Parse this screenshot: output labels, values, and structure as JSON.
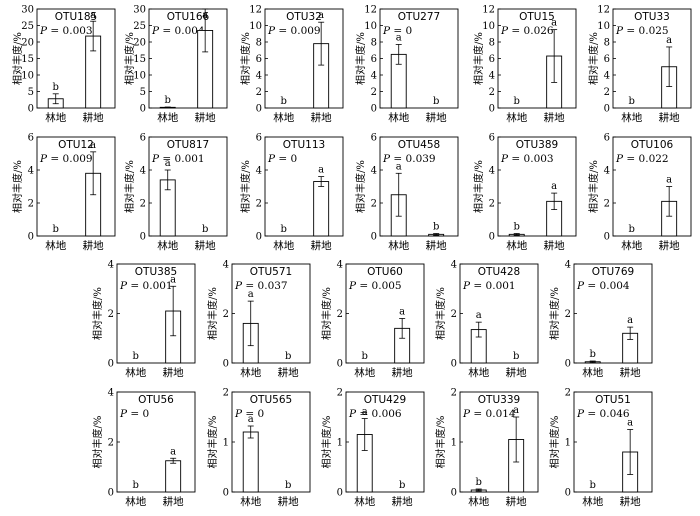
{
  "chart_data": [
    {
      "type": "bar",
      "title": "OTU185",
      "p": "= 0.003",
      "ylabel": "相对丰度/%",
      "ylim": [
        0,
        30
      ],
      "yticks": [
        0,
        5,
        10,
        15,
        20,
        25,
        30
      ],
      "categories": [
        "林地",
        "耕地"
      ],
      "values": [
        2.8,
        21.8
      ],
      "errors": [
        1.5,
        4.5
      ],
      "letters": [
        "b",
        "a"
      ]
    },
    {
      "type": "bar",
      "title": "OTU166",
      "p": "= 0.004",
      "ylabel": "相对丰度/%",
      "ylim": [
        0,
        30
      ],
      "yticks": [
        0,
        5,
        10,
        15,
        20,
        25,
        30
      ],
      "categories": [
        "林地",
        "耕地"
      ],
      "values": [
        0.2,
        23.5
      ],
      "errors": [
        0.1,
        6.5
      ],
      "letters": [
        "b",
        "a"
      ]
    },
    {
      "type": "bar",
      "title": "OTU32",
      "p": "= 0.009",
      "ylabel": "相对丰度/%",
      "ylim": [
        0,
        12
      ],
      "yticks": [
        0,
        2,
        4,
        6,
        8,
        10,
        12
      ],
      "categories": [
        "林地",
        "耕地"
      ],
      "values": [
        0,
        7.8
      ],
      "errors": [
        0,
        2.6
      ],
      "letters": [
        "b",
        "a"
      ]
    },
    {
      "type": "bar",
      "title": "OTU277",
      "p": "= 0",
      "ylabel": "相对丰度/%",
      "ylim": [
        0,
        12
      ],
      "yticks": [
        0,
        2,
        4,
        6,
        8,
        10,
        12
      ],
      "categories": [
        "林地",
        "耕地"
      ],
      "values": [
        6.5,
        0
      ],
      "errors": [
        1.2,
        0
      ],
      "letters": [
        "a",
        "b"
      ]
    },
    {
      "type": "bar",
      "title": "OTU15",
      "p": "= 0.026",
      "ylabel": "相对丰度/%",
      "ylim": [
        0,
        12
      ],
      "yticks": [
        0,
        2,
        4,
        6,
        8,
        10,
        12
      ],
      "categories": [
        "林地",
        "耕地"
      ],
      "values": [
        0,
        6.3
      ],
      "errors": [
        0,
        3.2
      ],
      "letters": [
        "b",
        "a"
      ]
    },
    {
      "type": "bar",
      "title": "OTU33",
      "p": "= 0.025",
      "ylabel": "相对丰度/%",
      "ylim": [
        0,
        12
      ],
      "yticks": [
        0,
        2,
        4,
        6,
        8,
        10,
        12
      ],
      "categories": [
        "林地",
        "耕地"
      ],
      "values": [
        0,
        5.0
      ],
      "errors": [
        0,
        2.4
      ],
      "letters": [
        "b",
        "a"
      ]
    },
    {
      "type": "bar",
      "title": "OTU12",
      "p": "= 0.009",
      "ylabel": "相对丰度/%",
      "ylim": [
        0,
        6
      ],
      "yticks": [
        0,
        2,
        4,
        6
      ],
      "categories": [
        "林地",
        "耕地"
      ],
      "values": [
        0,
        3.8
      ],
      "errors": [
        0,
        1.3
      ],
      "letters": [
        "b",
        "a"
      ]
    },
    {
      "type": "bar",
      "title": "OTU817",
      "p": "= 0.001",
      "ylabel": "相对丰度/%",
      "ylim": [
        0,
        6
      ],
      "yticks": [
        0,
        2,
        4,
        6
      ],
      "categories": [
        "林地",
        "耕地"
      ],
      "values": [
        3.4,
        0
      ],
      "errors": [
        0.6,
        0
      ],
      "letters": [
        "a",
        "b"
      ]
    },
    {
      "type": "bar",
      "title": "OTU113",
      "p": "= 0",
      "ylabel": "相对丰度/%",
      "ylim": [
        0,
        6
      ],
      "yticks": [
        0,
        2,
        4,
        6
      ],
      "categories": [
        "林地",
        "耕地"
      ],
      "values": [
        0,
        3.3
      ],
      "errors": [
        0,
        0.3
      ],
      "letters": [
        "b",
        "a"
      ]
    },
    {
      "type": "bar",
      "title": "OTU458",
      "p": "= 0.039",
      "ylabel": "相对丰度/%",
      "ylim": [
        0,
        6
      ],
      "yticks": [
        0,
        2,
        4,
        6
      ],
      "categories": [
        "林地",
        "耕地"
      ],
      "values": [
        2.5,
        0.1
      ],
      "errors": [
        1.3,
        0.05
      ],
      "letters": [
        "a",
        "b"
      ]
    },
    {
      "type": "bar",
      "title": "OTU389",
      "p": "= 0.003",
      "ylabel": "相对丰度/%",
      "ylim": [
        0,
        6
      ],
      "yticks": [
        0,
        2,
        4,
        6
      ],
      "categories": [
        "林地",
        "耕地"
      ],
      "values": [
        0.1,
        2.1
      ],
      "errors": [
        0.05,
        0.5
      ],
      "letters": [
        "b",
        "a"
      ]
    },
    {
      "type": "bar",
      "title": "OTU106",
      "p": "= 0.022",
      "ylabel": "相对丰度/%",
      "ylim": [
        0,
        6
      ],
      "yticks": [
        0,
        2,
        4,
        6
      ],
      "categories": [
        "林地",
        "耕地"
      ],
      "values": [
        0,
        2.1
      ],
      "errors": [
        0,
        0.9
      ],
      "letters": [
        "b",
        "a"
      ]
    },
    {
      "type": "bar",
      "title": "OTU385",
      "p": "= 0.001",
      "ylabel": "相对丰度/%",
      "ylim": [
        0,
        4
      ],
      "yticks": [
        0,
        2,
        4
      ],
      "categories": [
        "林地",
        "耕地"
      ],
      "values": [
        0,
        2.1
      ],
      "errors": [
        0,
        1.0
      ],
      "letters": [
        "b",
        "a"
      ]
    },
    {
      "type": "bar",
      "title": "OTU571",
      "p": "= 0.037",
      "ylabel": "相对丰度/%",
      "ylim": [
        0,
        4
      ],
      "yticks": [
        0,
        2,
        4
      ],
      "categories": [
        "林地",
        "耕地"
      ],
      "values": [
        1.6,
        0
      ],
      "errors": [
        0.9,
        0
      ],
      "letters": [
        "a",
        "b"
      ]
    },
    {
      "type": "bar",
      "title": "OTU60",
      "p": "= 0.005",
      "ylabel": "相对丰度/%",
      "ylim": [
        0,
        4
      ],
      "yticks": [
        0,
        2,
        4
      ],
      "categories": [
        "林地",
        "耕地"
      ],
      "values": [
        0,
        1.4
      ],
      "errors": [
        0,
        0.4
      ],
      "letters": [
        "b",
        "a"
      ]
    },
    {
      "type": "bar",
      "title": "OTU428",
      "p": "= 0.001",
      "ylabel": "相对丰度/%",
      "ylim": [
        0,
        4
      ],
      "yticks": [
        0,
        2,
        4
      ],
      "categories": [
        "林地",
        "耕地"
      ],
      "values": [
        1.35,
        0
      ],
      "errors": [
        0.3,
        0
      ],
      "letters": [
        "a",
        "b"
      ]
    },
    {
      "type": "bar",
      "title": "OTU769",
      "p": "= 0.004",
      "ylabel": "相对丰度/%",
      "ylim": [
        0,
        4
      ],
      "yticks": [
        0,
        2,
        4
      ],
      "categories": [
        "林地",
        "耕地"
      ],
      "values": [
        0.05,
        1.2
      ],
      "errors": [
        0.03,
        0.25
      ],
      "letters": [
        "b",
        "a"
      ]
    },
    {
      "type": "bar",
      "title": "OTU56",
      "p": "= 0",
      "ylabel": "相对丰度/%",
      "ylim": [
        0,
        4
      ],
      "yticks": [
        0,
        2,
        4
      ],
      "categories": [
        "林地",
        "耕地"
      ],
      "values": [
        0,
        1.25
      ],
      "errors": [
        0,
        0.1
      ],
      "letters": [
        "b",
        "a"
      ]
    },
    {
      "type": "bar",
      "title": "OTU565",
      "p": "= 0",
      "ylabel": "相对丰度/%",
      "ylim": [
        0,
        2
      ],
      "yticks": [
        0,
        1,
        2
      ],
      "categories": [
        "林地",
        "耕地"
      ],
      "values": [
        1.2,
        0
      ],
      "errors": [
        0.12,
        0
      ],
      "letters": [
        "a",
        "b"
      ]
    },
    {
      "type": "bar",
      "title": "OTU429",
      "p": "= 0.006",
      "ylabel": "相对丰度/%",
      "ylim": [
        0,
        2
      ],
      "yticks": [
        0,
        1,
        2
      ],
      "categories": [
        "林地",
        "耕地"
      ],
      "values": [
        1.15,
        0
      ],
      "errors": [
        0.32,
        0
      ],
      "letters": [
        "a",
        "b"
      ]
    },
    {
      "type": "bar",
      "title": "OTU339",
      "p": "= 0.014",
      "ylabel": "相对丰度/%",
      "ylim": [
        0,
        2
      ],
      "yticks": [
        0,
        1,
        2
      ],
      "categories": [
        "林地",
        "耕地"
      ],
      "values": [
        0.04,
        1.05
      ],
      "errors": [
        0.02,
        0.45
      ],
      "letters": [
        "b",
        "a"
      ]
    },
    {
      "type": "bar",
      "title": "OTU51",
      "p": "= 0.046",
      "ylabel": "相对丰度/%",
      "ylim": [
        0,
        2
      ],
      "yticks": [
        0,
        1,
        2
      ],
      "categories": [
        "林地",
        "耕地"
      ],
      "values": [
        0,
        0.8
      ],
      "errors": [
        0,
        0.45
      ],
      "letters": [
        "b",
        "a"
      ]
    }
  ]
}
